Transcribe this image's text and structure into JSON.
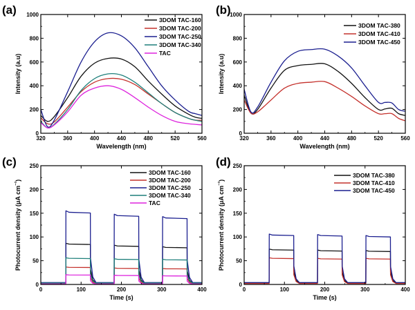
{
  "colors": {
    "black": "#111111",
    "red": "#c4302b",
    "navy": "#1a1e8f",
    "teal": "#1d7f7a",
    "magenta": "#dd22dd"
  },
  "chart_data": [
    {
      "panel": "(a)",
      "type": "line",
      "xlabel": "Wavelength (nm)",
      "ylabel": "Intensity (a.u)",
      "xlim": [
        320,
        560
      ],
      "ylim": [
        0,
        1000
      ],
      "xticks": [
        320,
        360,
        400,
        440,
        480,
        520,
        560
      ],
      "yticks": [
        0,
        200,
        400,
        600,
        800,
        1000
      ],
      "legend": "top-right",
      "series": [
        {
          "name": "3DOM TAC-160",
          "color": "black",
          "x": [
            320,
            330,
            340,
            360,
            380,
            400,
            420,
            440,
            460,
            480,
            500,
            520,
            540,
            550,
            560
          ],
          "y": [
            150,
            100,
            140,
            300,
            480,
            590,
            630,
            625,
            560,
            440,
            330,
            230,
            160,
            135,
            125
          ]
        },
        {
          "name": "3DOM TAC-200",
          "color": "red",
          "x": [
            320,
            330,
            340,
            360,
            380,
            400,
            420,
            440,
            460,
            480,
            500,
            520,
            540,
            550,
            560
          ],
          "y": [
            130,
            80,
            95,
            220,
            350,
            430,
            460,
            455,
            410,
            330,
            250,
            175,
            125,
            110,
            110
          ]
        },
        {
          "name": "3DOM TAC-250",
          "color": "navy",
          "x": [
            320,
            330,
            340,
            360,
            380,
            400,
            420,
            440,
            460,
            480,
            500,
            520,
            540,
            550,
            560
          ],
          "y": [
            200,
            55,
            110,
            350,
            600,
            770,
            845,
            820,
            720,
            560,
            400,
            280,
            185,
            165,
            150
          ]
        },
        {
          "name": "3DOM TAC-340",
          "color": "teal",
          "x": [
            320,
            330,
            340,
            360,
            380,
            400,
            420,
            440,
            460,
            480,
            500,
            520,
            540,
            550,
            560
          ],
          "y": [
            100,
            45,
            75,
            200,
            360,
            460,
            500,
            490,
            430,
            340,
            250,
            175,
            125,
            110,
            100
          ]
        },
        {
          "name": "TAC",
          "color": "magenta",
          "x": [
            320,
            330,
            340,
            360,
            380,
            400,
            420,
            440,
            460,
            480,
            500,
            520,
            540,
            550,
            560
          ],
          "y": [
            90,
            45,
            70,
            180,
            320,
            380,
            400,
            370,
            300,
            220,
            150,
            100,
            80,
            75,
            70
          ]
        }
      ]
    },
    {
      "panel": "(b)",
      "type": "line",
      "xlabel": "Wavelength (nm)",
      "ylabel": "Intensity (a.u)",
      "xlim": [
        320,
        560
      ],
      "ylim": [
        0,
        1000
      ],
      "xticks": [
        320,
        360,
        400,
        440,
        480,
        520,
        560
      ],
      "yticks": [
        0,
        200,
        400,
        600,
        800,
        1000
      ],
      "legend": "top-right",
      "series": [
        {
          "name": "3DOM TAC-380",
          "color": "black",
          "x": [
            320,
            330,
            340,
            360,
            380,
            400,
            420,
            440,
            460,
            480,
            500,
            520,
            530,
            540,
            550,
            560
          ],
          "y": [
            320,
            170,
            200,
            380,
            530,
            570,
            580,
            585,
            520,
            420,
            300,
            200,
            205,
            210,
            165,
            150
          ]
        },
        {
          "name": "3DOM TAC-410",
          "color": "red",
          "x": [
            320,
            330,
            340,
            360,
            380,
            400,
            420,
            440,
            460,
            480,
            500,
            520,
            530,
            540,
            550,
            560
          ],
          "y": [
            280,
            170,
            180,
            280,
            380,
            420,
            430,
            435,
            380,
            310,
            230,
            165,
            165,
            165,
            125,
            105
          ]
        },
        {
          "name": "3DOM TAC-450",
          "color": "navy",
          "x": [
            320,
            330,
            340,
            360,
            380,
            400,
            420,
            440,
            460,
            480,
            500,
            520,
            530,
            540,
            550,
            560
          ],
          "y": [
            370,
            180,
            220,
            430,
            610,
            690,
            705,
            708,
            650,
            550,
            400,
            260,
            260,
            255,
            200,
            185
          ]
        }
      ]
    },
    {
      "panel": "(c)",
      "type": "line",
      "xlabel": "Time (s)",
      "ylabel": "Photocurrent density (μA cm⁻²)",
      "xlim": [
        0,
        400
      ],
      "ylim": [
        0,
        250
      ],
      "xticks": [
        0,
        100,
        200,
        300,
        400
      ],
      "yticks": [
        0,
        50,
        100,
        150,
        200,
        250
      ],
      "legend": "top-right",
      "on_intervals": [
        [
          62,
          123
        ],
        [
          182,
          243
        ],
        [
          302,
          363
        ]
      ],
      "series": [
        {
          "name": "3DOM TAC-160",
          "color": "black",
          "dark": 3,
          "on_levels": [
            85,
            81,
            78
          ]
        },
        {
          "name": "3DOM TAC-200",
          "color": "red",
          "dark": 2,
          "on_levels": [
            36,
            34,
            33
          ]
        },
        {
          "name": "3DOM TAC-250",
          "color": "navy",
          "dark": 4,
          "on_levels": [
            152,
            145,
            140
          ]
        },
        {
          "name": "3DOM TAC-340",
          "color": "teal",
          "dark": 3,
          "on_levels": [
            55,
            53,
            52
          ]
        },
        {
          "name": "TAC",
          "color": "magenta",
          "dark": 1,
          "on_levels": [
            20,
            19,
            18
          ]
        }
      ]
    },
    {
      "panel": "(d)",
      "type": "line",
      "xlabel": "Time (s)",
      "ylabel": "Photocurrent density (μA cm⁻²)",
      "xlim": [
        0,
        400
      ],
      "ylim": [
        0,
        250
      ],
      "xticks": [
        0,
        100,
        200,
        300,
        400
      ],
      "yticks": [
        0,
        50,
        100,
        150,
        200,
        250
      ],
      "legend": "top-right",
      "on_intervals": [
        [
          62,
          123
        ],
        [
          182,
          243
        ],
        [
          302,
          363
        ]
      ],
      "series": [
        {
          "name": "3DOM TAC-380",
          "color": "black",
          "dark": 3,
          "on_levels": [
            73,
            71,
            70
          ]
        },
        {
          "name": "3DOM TAC-410",
          "color": "red",
          "dark": 2,
          "on_levels": [
            55,
            54,
            54
          ]
        },
        {
          "name": "3DOM TAC-450",
          "color": "navy",
          "dark": 4,
          "on_levels": [
            104,
            103,
            101
          ]
        }
      ]
    }
  ]
}
